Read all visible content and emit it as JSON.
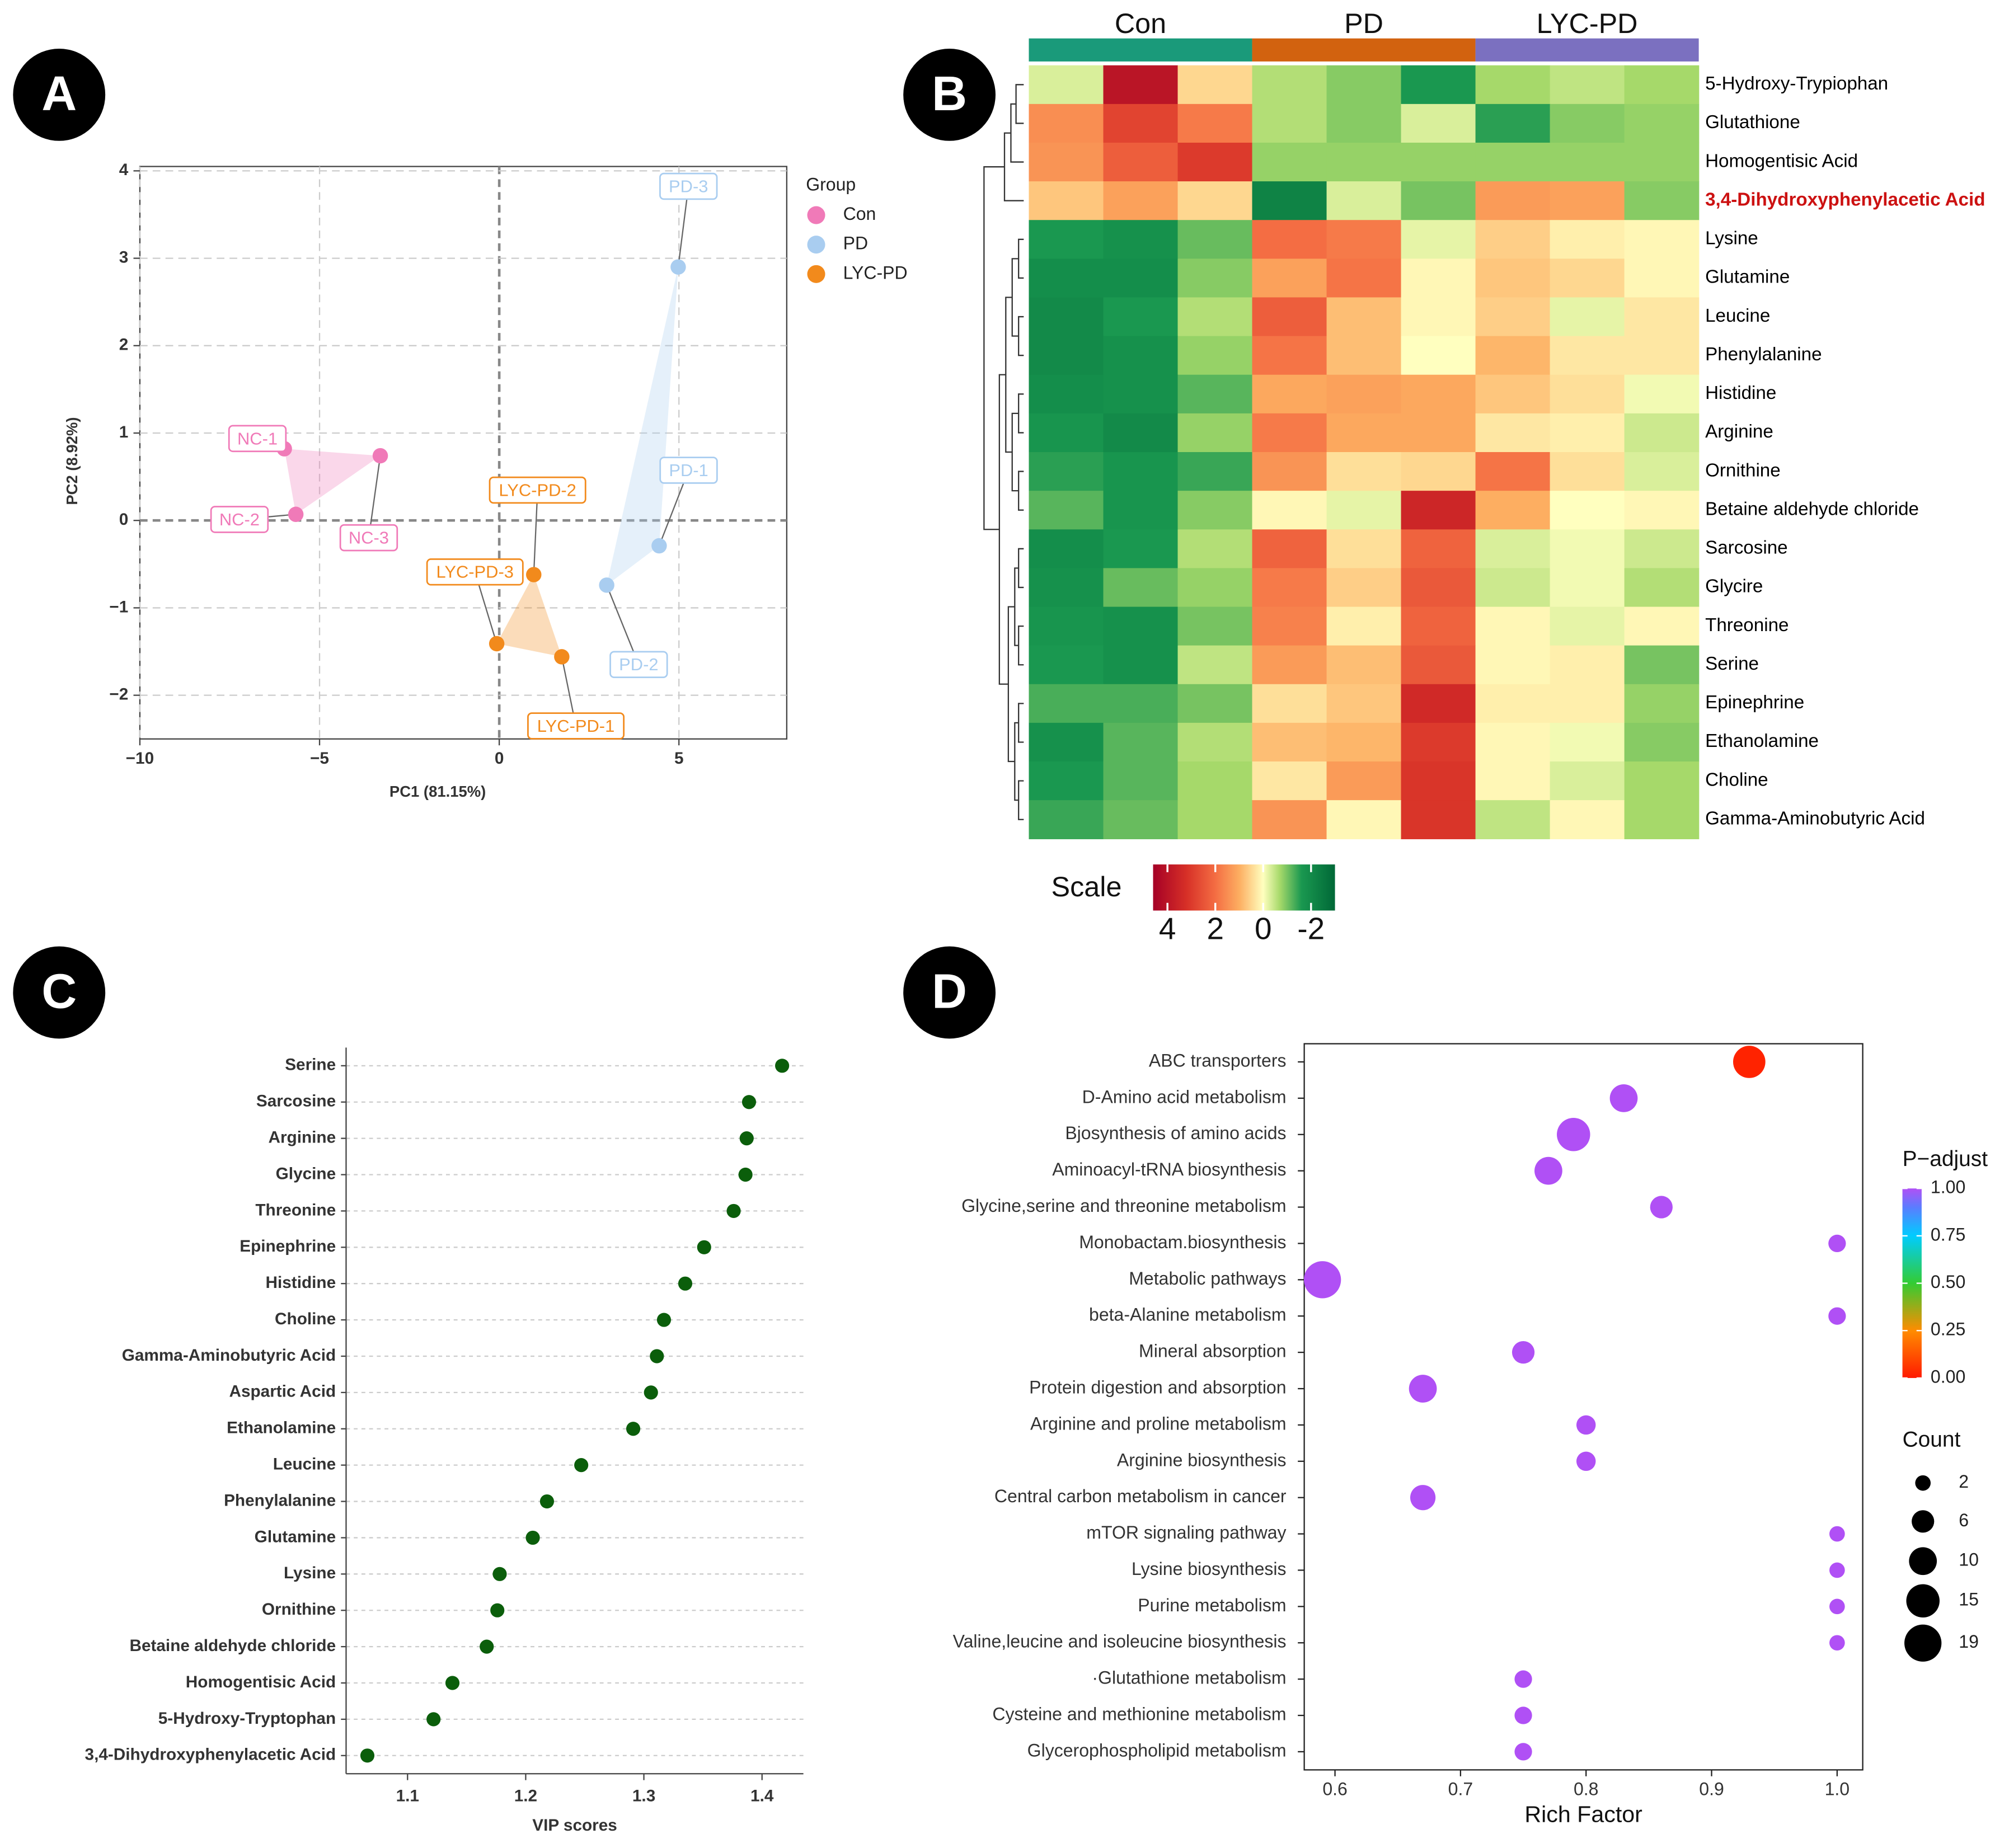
{
  "chart_data": [
    {
      "type": "scatter",
      "panel": "A",
      "xlabel": "PC1 (81.15%)",
      "ylabel": "PC2 (8.92%)",
      "legend_title": "Group",
      "xlim": [
        -10,
        8
      ],
      "ylim": [
        -2.5,
        4.05
      ],
      "xticks": [
        {
          "value": -10,
          "label": "−10"
        },
        {
          "value": -5,
          "label": "−5"
        },
        0,
        5
      ],
      "yticks": [
        {
          "value": -2,
          "label": "−2"
        },
        {
          "value": -1,
          "label": "−1"
        },
        0,
        1,
        2,
        3,
        4
      ],
      "grid": true,
      "zero_lines": true,
      "series": [
        {
          "name": "Con",
          "color": "#f07ab8",
          "x": [
            -5.98,
            -5.66,
            -3.31
          ],
          "values": [
            0.82,
            0.07,
            0.74
          ],
          "point_labels": [
            "NC-1",
            "NC-2",
            "NC-3"
          ]
        },
        {
          "name": "PD",
          "color": "#a9cdf0",
          "x": [
            4.45,
            2.99,
            4.98
          ],
          "values": [
            -0.29,
            -0.74,
            2.9
          ],
          "point_labels": [
            "PD-1",
            "PD-2",
            "PD-3"
          ]
        },
        {
          "name": "LYC-PD",
          "color": "#f28a1c",
          "x": [
            1.74,
            0.96,
            -0.07
          ],
          "values": [
            -1.56,
            -0.62,
            -1.41
          ],
          "point_labels": [
            "LYC-PD-1",
            "LYC-PD-2",
            "LYC-PD-3"
          ]
        }
      ]
    },
    {
      "type": "heatmap",
      "panel": "B",
      "groups": [
        {
          "name": "Con",
          "color": "#1a9a7a"
        },
        {
          "name": "PD",
          "color": "#d2620f"
        },
        {
          "name": "LYC-PD",
          "color": "#7b70c0"
        }
      ],
      "rows": [
        {
          "name": "5-Hydroxy-Trypiophan",
          "values": [
            -0.3,
            4,
            0.5,
            -0.6,
            -0.9,
            -1.6,
            -0.7,
            -0.5,
            -0.7
          ]
        },
        {
          "name": "Glutathione",
          "values": [
            1.5,
            2.8,
            1.8,
            -0.6,
            -0.9,
            -0.3,
            -1.5,
            -0.9,
            -0.8
          ]
        },
        {
          "name": "Homogentisic Acid",
          "values": [
            1.4,
            2.3,
            3,
            -0.8,
            -0.8,
            -0.8,
            -0.8,
            -0.8,
            -0.8
          ]
        },
        {
          "name": "3,4-Dihydroxyphenylacetic Acid",
          "values": [
            0.7,
            1.2,
            0.5,
            -2.2,
            -0.3,
            -1,
            1.3,
            1.2,
            -0.9
          ]
        },
        {
          "name": "Lysine",
          "values": [
            -1.6,
            -1.8,
            -1.1,
            2,
            1.8,
            -0.2,
            0.6,
            0.2,
            0.1
          ]
        },
        {
          "name": "Glutamine",
          "values": [
            -1.9,
            -1.9,
            -0.9,
            1.2,
            1.9,
            0.1,
            0.7,
            0.5,
            0.1
          ]
        },
        {
          "name": "Leucine",
          "values": [
            -2,
            -1.6,
            -0.6,
            2.3,
            0.8,
            0.1,
            0.6,
            -0.2,
            0.3
          ]
        },
        {
          "name": "Phenylalanine",
          "values": [
            -2,
            -1.8,
            -0.8,
            1.9,
            0.8,
            0,
            0.9,
            0.3,
            0.3
          ]
        },
        {
          "name": "Histidine",
          "values": [
            -1.9,
            -1.8,
            -1.2,
            1.1,
            1.2,
            1.1,
            0.7,
            0.4,
            -0.1
          ]
        },
        {
          "name": "Arginine",
          "values": [
            -1.7,
            -2,
            -0.8,
            1.8,
            1.1,
            1.1,
            0.3,
            0.2,
            -0.4
          ]
        },
        {
          "name": "Ornithine",
          "values": [
            -1.5,
            -1.7,
            -1.4,
            1.4,
            0.4,
            0.5,
            1.9,
            0.4,
            -0.3
          ]
        },
        {
          "name": "Betaine aldehyde chloride",
          "values": [
            -1.2,
            -1.7,
            -0.9,
            0.1,
            -0.2,
            3.5,
            1,
            0,
            0.1
          ]
        },
        {
          "name": "Sarcosine",
          "values": [
            -1.9,
            -1.6,
            -0.6,
            2.2,
            0.4,
            2.2,
            -0.3,
            -0.1,
            -0.4
          ]
        },
        {
          "name": "Glycire",
          "values": [
            -1.8,
            -1.1,
            -0.8,
            1.8,
            0.6,
            2.4,
            -0.4,
            -0.1,
            -0.6
          ]
        },
        {
          "name": "Threonine",
          "values": [
            -1.7,
            -1.8,
            -1,
            1.7,
            0.2,
            2.2,
            0.1,
            -0.2,
            0.1
          ]
        },
        {
          "name": "Serine",
          "values": [
            -1.6,
            -1.8,
            -0.5,
            1.3,
            0.8,
            2.4,
            0.1,
            0.2,
            -1
          ]
        },
        {
          "name": "Epinephrine",
          "values": [
            -1.3,
            -1.3,
            -1,
            0.4,
            0.7,
            3.4,
            0.2,
            0.2,
            -0.8
          ]
        },
        {
          "name": "Ethanolamine",
          "values": [
            -1.8,
            -1.2,
            -0.6,
            0.8,
            0.9,
            3,
            0.1,
            -0.1,
            -0.9
          ]
        },
        {
          "name": "Choline",
          "values": [
            -1.6,
            -1.2,
            -0.7,
            0.3,
            1.3,
            3.1,
            0.1,
            -0.3,
            -0.7
          ]
        },
        {
          "name": "Gamma-Aminobutyric Acid",
          "values": [
            -1.4,
            -1.1,
            -0.7,
            1.4,
            0.1,
            3.1,
            -0.5,
            0.1,
            -0.7
          ]
        }
      ],
      "row_label_colors": [
        "#000000",
        "#000000",
        "#000000",
        "#cc1111",
        "#000000",
        "#000000",
        "#000000",
        "#000000",
        "#000000",
        "#000000",
        "#000000",
        "#000000",
        "#000000",
        "#000000",
        "#000000",
        "#000000",
        "#000000",
        "#000000",
        "#000000",
        "#000000"
      ],
      "colorbar_title": "Scale",
      "color_stops": [
        [
          4.6,
          "#a50026"
        ],
        [
          3.2,
          "#d73027"
        ],
        [
          2,
          "#f46d43"
        ],
        [
          1,
          "#fdae61"
        ],
        [
          0,
          "#ffffbf"
        ],
        [
          -0.7,
          "#a6d96a"
        ],
        [
          -1.6,
          "#1a9850"
        ],
        [
          -3,
          "#006837"
        ]
      ],
      "colorbar_ticks": [
        4,
        2,
        0,
        -2
      ]
    },
    {
      "type": "dot",
      "panel": "C",
      "xlabel": "VIP scores",
      "color": "#0b5e0b",
      "categories": [
        "Serine",
        "Sarcosine",
        "Arginine",
        "Glycine",
        "Threonine",
        "Epinephrine",
        "Histidine",
        "Choline",
        "Gamma-Aminobutyric Acid",
        "Aspartic Acid",
        "Ethanolamine",
        "Leucine",
        "Phenylalanine",
        "Glutamine",
        "Lysine",
        "Ornithine",
        "Betaine aldehyde chloride",
        "Homogentisic Acid",
        "5-Hydroxy-Tryptophan",
        "3,4-Dihydroxyphenylacetic Acid"
      ],
      "values": [
        1.417,
        1.389,
        1.387,
        1.386,
        1.376,
        1.351,
        1.335,
        1.317,
        1.311,
        1.306,
        1.291,
        1.247,
        1.218,
        1.206,
        1.178,
        1.176,
        1.167,
        1.138,
        1.122,
        1.066
      ],
      "xlim": [
        1.048,
        1.435
      ],
      "xticks": [
        1.1,
        1.2,
        1.3,
        1.4
      ],
      "grid": true
    },
    {
      "type": "bubble",
      "panel": "D",
      "xlabel": "Rich Factor",
      "categories": [
        "ABC transporters",
        "D-Amino acid metabolism",
        "Bjosynthesis of amino acids",
        "Aminoacyl-tRNA biosynthesis",
        "Glycine,serine and threonine metabolism",
        "Monobactam.biosynthesis",
        "Metabolic pathways",
        "beta-Alanine metabolism",
        "Mineral absorption",
        "Protein digestion and absorption",
        "Arginine and proline metabolism",
        "Arginine biosynthesis",
        "Central carbon metabolism in cancer",
        "mTOR signaling pathway",
        "Lysine biosynthesis",
        "Purine metabolism",
        "Valine,leucine and isoleucine biosynthesis",
        "·Glutathione metabolism",
        "Cysteine and methionine metabolism",
        "Glycerophospholipid metabolism"
      ],
      "values": [
        0.93,
        0.83,
        0.79,
        0.77,
        0.86,
        1,
        0.59,
        1,
        0.75,
        0.67,
        0.8,
        0.8,
        0.67,
        1,
        1,
        1,
        1,
        0.75,
        0.75,
        0.75
      ],
      "sizes": [
        14,
        10,
        15,
        10,
        6,
        3,
        19,
        3,
        6,
        10,
        4,
        4,
        8,
        2,
        2,
        2,
        2,
        3,
        3,
        3
      ],
      "color_values": [
        0.02,
        1,
        1,
        1,
        1,
        1,
        1,
        1,
        1,
        1,
        1,
        1,
        1,
        1,
        1,
        1,
        1,
        1,
        1,
        1
      ],
      "xlim": [
        0.5755,
        1.0204
      ],
      "xticks": [
        0.6,
        0.7,
        0.8,
        0.9,
        {
          "value": 1,
          "label": "1.0"
        }
      ],
      "color_title": "P−adjust",
      "color_stops": [
        [
          0,
          "#ff1a00"
        ],
        [
          0.25,
          "#ff8c00"
        ],
        [
          0.5,
          "#33cc33"
        ],
        [
          0.75,
          "#00ccff"
        ],
        [
          0.9,
          "#5a7dff"
        ],
        [
          1,
          "#b050f5"
        ]
      ],
      "colorbar_ticks": [
        {
          "value": 0,
          "label": "0.00"
        },
        {
          "value": 0.25,
          "label": "0.25"
        },
        {
          "value": 0.5,
          "label": "0.50"
        },
        {
          "value": 0.75,
          "label": "0.75"
        },
        {
          "value": 1,
          "label": "1.00"
        }
      ],
      "size_title": "Count",
      "size_legend": [
        2,
        6,
        10,
        15,
        19
      ]
    }
  ]
}
